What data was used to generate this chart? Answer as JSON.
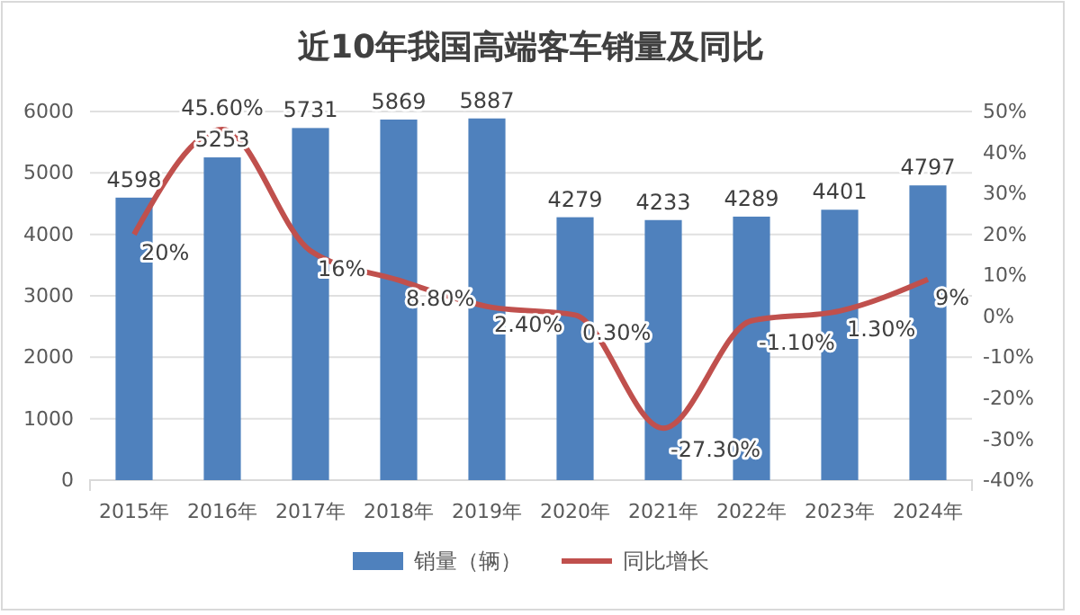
{
  "chart_data": {
    "type": "bar",
    "title": "近10年我国高端客车销量及同比",
    "categories": [
      "2015年",
      "2016年",
      "2017年",
      "2018年",
      "2019年",
      "2020年",
      "2021年",
      "2022年",
      "2023年",
      "2024年"
    ],
    "series": [
      {
        "name": "销量（辆）",
        "color": "#4f81bd",
        "values": [
          4598,
          5253,
          5731,
          5869,
          5887,
          4279,
          4233,
          4289,
          4401,
          4797
        ],
        "value_labels": [
          "4598",
          "5253",
          "5731",
          "5869",
          "5887",
          "4279",
          "4233",
          "4289",
          "4401",
          "4797"
        ]
      },
      {
        "name": "同比增长",
        "type": "line",
        "axis": "y2",
        "color": "#c0504d",
        "marker": "none",
        "values": [
          20,
          45.6,
          16,
          8.8,
          2.4,
          0.3,
          -27.3,
          -1.1,
          1.3,
          9
        ],
        "value_labels": [
          "20%",
          "45.60%",
          "16%",
          "8.80%",
          "2.40%",
          "0.30%",
          "-27.30%",
          "-1.10%",
          "1.30%",
          "9%"
        ]
      }
    ],
    "ylim": [
      0,
      6000
    ],
    "yticks": [
      0,
      1000,
      2000,
      3000,
      4000,
      5000,
      6000
    ],
    "y2lim": [
      -40,
      50
    ],
    "y2ticks": [
      {
        "value": -40,
        "label": "-40%"
      },
      {
        "value": -30,
        "label": "-30%"
      },
      {
        "value": -20,
        "label": "-20%"
      },
      {
        "value": -10,
        "label": "-10%"
      },
      {
        "value": 0,
        "label": "0%"
      },
      {
        "value": 10,
        "label": "10%"
      },
      {
        "value": 20,
        "label": "20%"
      },
      {
        "value": 30,
        "label": "30%"
      },
      {
        "value": 40,
        "label": "40%"
      },
      {
        "value": 50,
        "label": "50%"
      }
    ],
    "grid": "y",
    "legend": "bottom"
  }
}
